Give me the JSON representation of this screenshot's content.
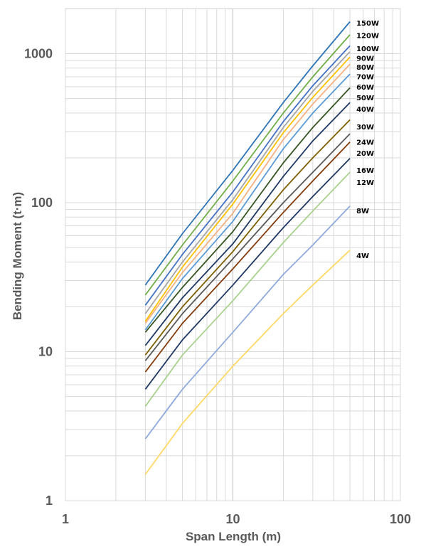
{
  "chart_data": {
    "type": "line",
    "x_scale": "log",
    "y_scale": "log",
    "xlim": [
      1,
      100
    ],
    "ylim": [
      1,
      2000
    ],
    "grid": true,
    "xlabel": "Span Length (m)",
    "ylabel": "Bending Moment (t·m)",
    "x_ticks": [
      {
        "value": 1,
        "label": "1"
      },
      {
        "value": 10,
        "label": "10"
      },
      {
        "value": 100,
        "label": "100"
      }
    ],
    "y_ticks": [
      {
        "value": 1,
        "label": "1"
      },
      {
        "value": 10,
        "label": "10"
      },
      {
        "value": 100,
        "label": "100"
      },
      {
        "value": 1000,
        "label": "1000"
      }
    ],
    "x": [
      3,
      5,
      10,
      20,
      30,
      50
    ],
    "series": [
      {
        "name": "150W",
        "color": "#2e75b6",
        "label_y": 1600,
        "values": [
          28,
          62,
          165,
          470,
          830,
          1640
        ]
      },
      {
        "name": "120W",
        "color": "#70ad47",
        "label_y": 1320,
        "values": [
          24,
          52,
          140,
          400,
          700,
          1340
        ]
      },
      {
        "name": "100W",
        "color": "#4472c4",
        "label_y": 1080,
        "values": [
          20.5,
          45,
          118,
          350,
          610,
          1130
        ]
      },
      {
        "name": "90W",
        "color": "#a5a5a5",
        "label_y": 930,
        "values": [
          18,
          40,
          105,
          320,
          560,
          1030
        ]
      },
      {
        "name": "80W",
        "color": "#ffc000",
        "label_y": 810,
        "values": [
          16,
          37,
          98,
          295,
          510,
          950
        ]
      },
      {
        "name": "70W",
        "color": "#f4b183",
        "label_y": 700,
        "values": [
          15.5,
          34,
          85,
          265,
          460,
          850
        ]
      },
      {
        "name": "60W",
        "color": "#5b9bd5",
        "label_y": 595,
        "values": [
          14,
          31,
          75,
          230,
          400,
          730
        ]
      },
      {
        "name": "50W",
        "color": "#375623",
        "label_y": 505,
        "values": [
          13.5,
          27,
          64,
          185,
          320,
          590
        ]
      },
      {
        "name": "40W",
        "color": "#1f3864",
        "label_y": 425,
        "values": [
          11,
          23,
          53,
          150,
          260,
          470
        ]
      },
      {
        "name": "30W",
        "color": "#7f6000",
        "label_y": 323,
        "values": [
          9.5,
          20,
          47,
          122,
          200,
          360
        ]
      },
      {
        "name": "24W",
        "color": "#595959",
        "label_y": 255,
        "values": [
          8.7,
          18,
          42,
          100,
          160,
          290
        ]
      },
      {
        "name": "20W",
        "color": "#843c0c",
        "label_y": 215,
        "values": [
          7.3,
          15.5,
          36,
          86,
          140,
          255
        ]
      },
      {
        "name": "16W",
        "color": "#203864",
        "label_y": 165,
        "values": [
          5.6,
          12,
          28,
          68,
          110,
          198
        ]
      },
      {
        "name": "12W",
        "color": "#a9d18e",
        "label_y": 137,
        "values": [
          4.3,
          9.5,
          22,
          54,
          88,
          160
        ]
      },
      {
        "name": "8W",
        "color": "#8faadc",
        "label_y": 88,
        "values": [
          2.6,
          5.6,
          13.5,
          33,
          52,
          95
        ]
      },
      {
        "name": "4W",
        "color": "#ffd966",
        "label_y": 44,
        "values": [
          1.5,
          3.3,
          8,
          18,
          28,
          48
        ]
      }
    ]
  }
}
